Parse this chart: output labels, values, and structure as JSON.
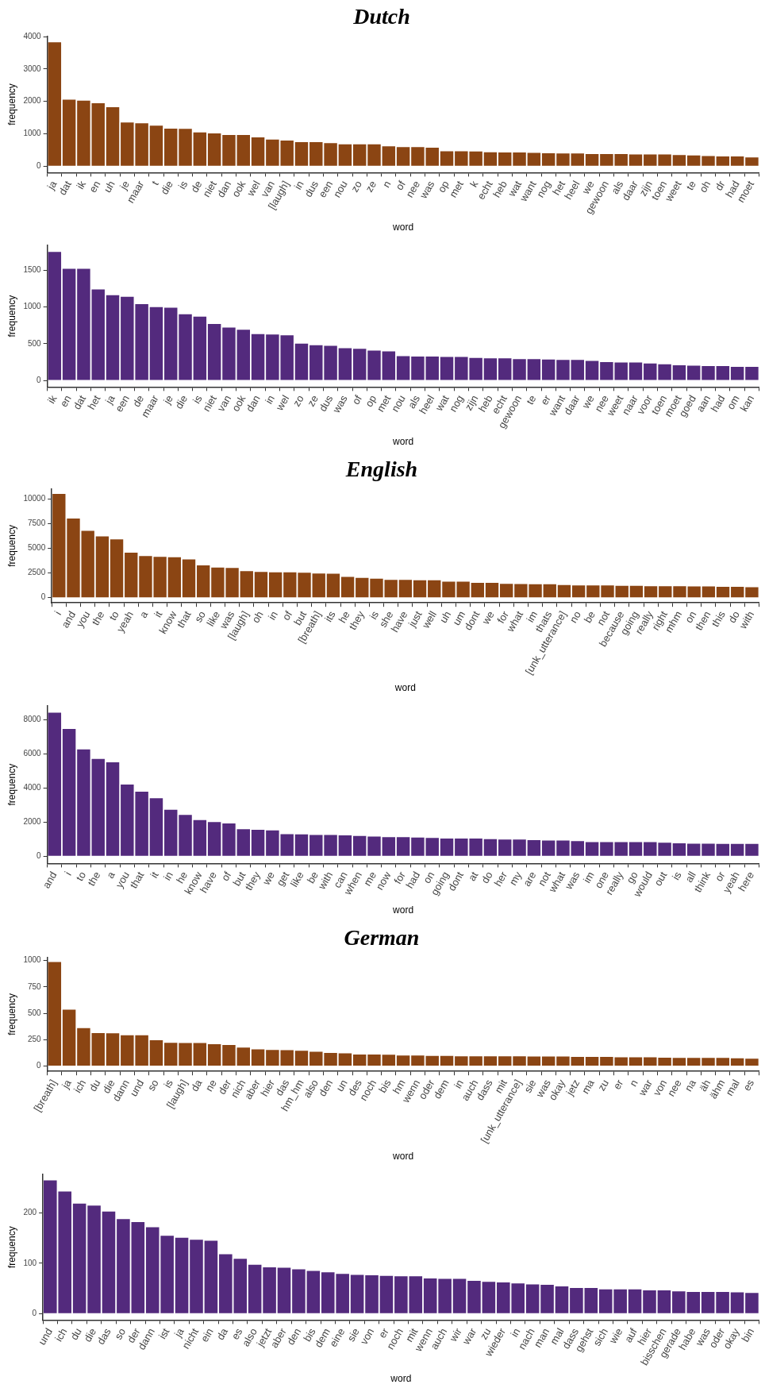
{
  "chart_data": [
    {
      "type": "bar",
      "title": "Dutch",
      "xlabel": "word",
      "ylabel": "frequency",
      "grid": false,
      "legend": false,
      "ylim": [
        -200,
        4010
      ],
      "yticks": [
        0,
        1000,
        2000,
        3000,
        4000
      ],
      "categories": [
        "ja",
        "dat",
        "ik",
        "en",
        "uh",
        "je",
        "maar",
        "t",
        "die",
        "is",
        "de",
        "niet",
        "dan",
        "ook",
        "wel",
        "van",
        "[laugh]",
        "in",
        "dus",
        "een",
        "nou",
        "zo",
        "ze",
        "n",
        "of",
        "nee",
        "was",
        "op",
        "met",
        "k",
        "echt",
        "heb",
        "wat",
        "want",
        "nog",
        "het",
        "heel",
        "we",
        "gewoon",
        "als",
        "daar",
        "zijn",
        "toen",
        "weet",
        "te",
        "oh",
        "dr",
        "had",
        "moet"
      ],
      "series": [
        {
          "color": "#8b4513",
          "values": [
            3820,
            2050,
            2020,
            1940,
            1820,
            1350,
            1320,
            1250,
            1160,
            1150,
            1040,
            1010,
            960,
            960,
            890,
            820,
            790,
            740,
            740,
            710,
            670,
            670,
            670,
            610,
            590,
            590,
            570,
            460,
            460,
            450,
            430,
            420,
            420,
            410,
            400,
            390,
            390,
            370,
            370,
            370,
            360,
            360,
            360,
            340,
            330,
            310,
            300,
            300,
            270
          ]
        }
      ]
    },
    {
      "type": "bar",
      "xlabel": "word",
      "ylabel": "frequency",
      "grid": false,
      "legend": false,
      "ylim": [
        -90,
        1840
      ],
      "yticks": [
        0,
        500,
        1000,
        1500
      ],
      "categories": [
        "ik",
        "en",
        "dat",
        "het",
        "ja",
        "een",
        "de",
        "maar",
        "je",
        "die",
        "is",
        "niet",
        "van",
        "ook",
        "dan",
        "in",
        "wel",
        "zo",
        "ze",
        "dus",
        "was",
        "of",
        "op",
        "met",
        "nou",
        "als",
        "heel",
        "wat",
        "nog",
        "zijn",
        "heb",
        "echt",
        "gewoon",
        "te",
        "er",
        "want",
        "daar",
        "we",
        "nee",
        "weet",
        "naar",
        "voor",
        "toen",
        "moet",
        "goed",
        "aan",
        "had",
        "om",
        "kan"
      ],
      "series": [
        {
          "color": "#532a7d",
          "values": [
            1750,
            1520,
            1520,
            1240,
            1160,
            1140,
            1040,
            1000,
            990,
            900,
            870,
            770,
            720,
            690,
            630,
            625,
            615,
            500,
            480,
            470,
            440,
            430,
            405,
            395,
            330,
            325,
            325,
            320,
            320,
            305,
            300,
            300,
            290,
            290,
            285,
            280,
            280,
            265,
            250,
            245,
            245,
            230,
            220,
            205,
            200,
            195,
            195,
            185,
            185
          ]
        }
      ]
    },
    {
      "type": "bar",
      "title": "English",
      "xlabel": "word",
      "ylabel": "frequency",
      "grid": false,
      "legend": false,
      "ylim": [
        -520,
        11000
      ],
      "yticks": [
        0,
        2500,
        5000,
        7500,
        10000
      ],
      "categories": [
        "i",
        "and",
        "you",
        "the",
        "to",
        "yeah",
        "a",
        "it",
        "know",
        "that",
        "so",
        "like",
        "was",
        "[laugh]",
        "oh",
        "in",
        "of",
        "but",
        "[breath]",
        "its",
        "he",
        "they",
        "is",
        "she",
        "have",
        "just",
        "well",
        "uh",
        "um",
        "dont",
        "we",
        "for",
        "what",
        "im",
        "thats",
        "[unk_utterance]",
        "no",
        "be",
        "not",
        "because",
        "going",
        "really",
        "right",
        "mhm",
        "on",
        "then",
        "this",
        "do",
        "with"
      ],
      "series": [
        {
          "color": "#8b4513",
          "values": [
            10480,
            8000,
            6750,
            6200,
            5900,
            4550,
            4200,
            4130,
            4080,
            3870,
            3270,
            3050,
            3000,
            2680,
            2600,
            2570,
            2560,
            2520,
            2450,
            2420,
            2100,
            2000,
            1930,
            1800,
            1800,
            1770,
            1770,
            1620,
            1620,
            1500,
            1500,
            1400,
            1390,
            1360,
            1360,
            1280,
            1240,
            1240,
            1240,
            1200,
            1200,
            1170,
            1170,
            1170,
            1130,
            1130,
            1100,
            1100,
            1060
          ]
        }
      ]
    },
    {
      "type": "bar",
      "xlabel": "word",
      "ylabel": "frequency",
      "grid": false,
      "legend": false,
      "ylim": [
        -420,
        8800
      ],
      "yticks": [
        0,
        2000,
        4000,
        6000,
        8000
      ],
      "categories": [
        "and",
        "i",
        "to",
        "the",
        "a",
        "you",
        "that",
        "it",
        "in",
        "he",
        "know",
        "have",
        "of",
        "but",
        "they",
        "we",
        "get",
        "like",
        "be",
        "with",
        "can",
        "when",
        "me",
        "now",
        "for",
        "had",
        "on",
        "going",
        "dont",
        "at",
        "do",
        "her",
        "my",
        "are",
        "not",
        "what",
        "was",
        "im",
        "one",
        "really",
        "go",
        "would",
        "out",
        "is",
        "all",
        "think",
        "or",
        "yeah",
        "here"
      ],
      "series": [
        {
          "color": "#532a7d",
          "values": [
            8400,
            7450,
            6250,
            5700,
            5500,
            4200,
            3780,
            3400,
            2720,
            2420,
            2120,
            2000,
            1920,
            1580,
            1550,
            1520,
            1300,
            1280,
            1250,
            1250,
            1220,
            1190,
            1160,
            1120,
            1120,
            1100,
            1070,
            1040,
            1040,
            1040,
            1000,
            980,
            980,
            950,
            920,
            920,
            890,
            830,
            830,
            830,
            830,
            830,
            800,
            760,
            740,
            740,
            720,
            720,
            720
          ]
        }
      ]
    },
    {
      "type": "bar",
      "title": "German",
      "xlabel": "word",
      "ylabel": "frequency",
      "grid": false,
      "legend": false,
      "ylim": [
        -50,
        1030
      ],
      "yticks": [
        0,
        250,
        500,
        750,
        1000
      ],
      "categories": [
        "[breath]",
        "ja",
        "ich",
        "du",
        "die",
        "dann",
        "und",
        "so",
        "is",
        "[laugh]",
        "da",
        "ne",
        "der",
        "nich",
        "aber",
        "hier",
        "das",
        "hm_hm",
        "also",
        "den",
        "un",
        "des",
        "noch",
        "bis",
        "hm",
        "wenn",
        "oder",
        "dem",
        "in",
        "auch",
        "dass",
        "mit",
        "[unk_utterance]",
        "sie",
        "was",
        "okay",
        "jetz",
        "ma",
        "zu",
        "er",
        "n",
        "war",
        "von",
        "nee",
        "na",
        "äh",
        "ähm",
        "mal",
        "es"
      ],
      "series": [
        {
          "color": "#8b4513",
          "values": [
            985,
            535,
            360,
            312,
            310,
            292,
            292,
            245,
            220,
            218,
            218,
            208,
            200,
            175,
            158,
            153,
            150,
            145,
            135,
            125,
            120,
            110,
            110,
            107,
            100,
            100,
            97,
            97,
            93,
            93,
            93,
            93,
            93,
            90,
            90,
            90,
            87,
            87,
            87,
            83,
            83,
            83,
            80,
            77,
            77,
            77,
            77,
            73,
            70
          ]
        }
      ]
    },
    {
      "type": "bar",
      "xlabel": "word",
      "ylabel": "frequency",
      "grid": false,
      "legend": false,
      "ylim": [
        -13,
        277
      ],
      "yticks": [
        0,
        100,
        200
      ],
      "categories": [
        "und",
        "ich",
        "du",
        "die",
        "das",
        "so",
        "der",
        "dann",
        "ist",
        "ja",
        "nicht",
        "ein",
        "da",
        "es",
        "also",
        "jetzt",
        "aber",
        "den",
        "bis",
        "dem",
        "eine",
        "sie",
        "von",
        "er",
        "noch",
        "mit",
        "wenn",
        "auch",
        "wir",
        "war",
        "zu",
        "wieder",
        "in",
        "nach",
        "man",
        "mal",
        "dass",
        "gehst",
        "sich",
        "wie",
        "auf",
        "hier",
        "bisschen",
        "gerade",
        "habe",
        "was",
        "oder",
        "okay",
        "bin"
      ],
      "series": [
        {
          "color": "#532a7d",
          "values": [
            265,
            243,
            219,
            215,
            203,
            188,
            182,
            172,
            155,
            151,
            147,
            145,
            118,
            109,
            97,
            92,
            91,
            88,
            85,
            82,
            79,
            77,
            76,
            75,
            74,
            74,
            70,
            69,
            69,
            65,
            63,
            62,
            60,
            58,
            57,
            54,
            51,
            51,
            48,
            48,
            48,
            46,
            46,
            44,
            43,
            43,
            43,
            42,
            41
          ]
        }
      ]
    }
  ]
}
